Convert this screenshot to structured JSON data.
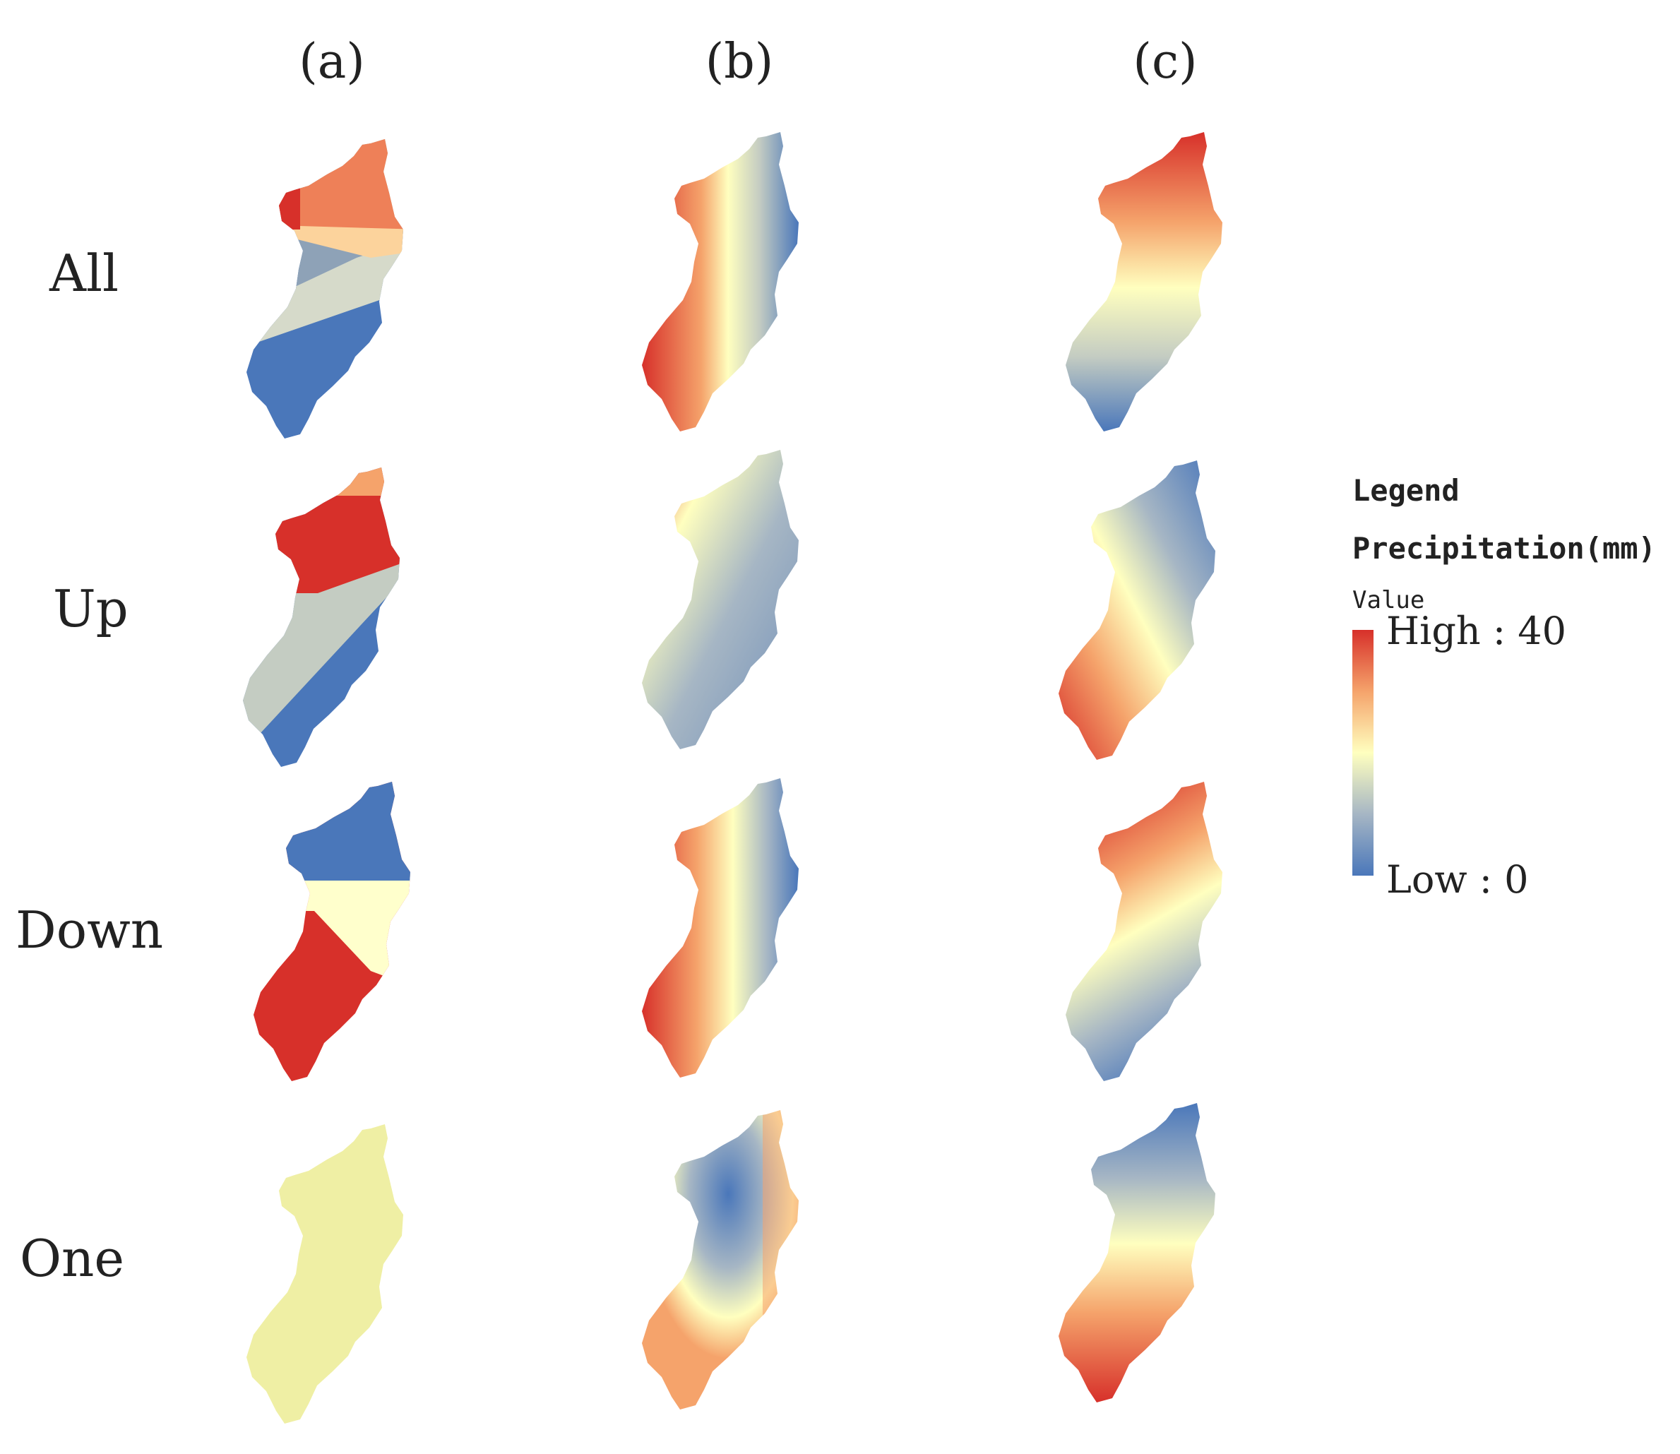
{
  "columns": [
    "(a)",
    "(b)",
    "(c)"
  ],
  "rows": [
    "All",
    "Up",
    "Down",
    "One"
  ],
  "legend": {
    "title": "Legend",
    "variable": "Precipitation(mm)",
    "field": "Value",
    "high_label": "High : 40",
    "low_label": "Low : 0",
    "high": 40,
    "low": 0,
    "colors": {
      "low": "#4A77BA",
      "mid_low": "#C4CCC2",
      "mid": "#FFFFBF",
      "mid_high": "#F5A36B",
      "high": "#D7302A"
    }
  },
  "panels": {
    "a": {
      "All": [
        {
          "zone": "west-tip",
          "value": 40
        },
        {
          "zone": "north",
          "value": 32
        },
        {
          "zone": "upper-middle",
          "value": 24
        },
        {
          "zone": "middle",
          "value": 16
        },
        {
          "zone": "lower",
          "value": 8
        },
        {
          "zone": "south-tip",
          "value": 0
        }
      ],
      "Up": [
        {
          "zone": "north-tip",
          "value": 30
        },
        {
          "zone": "north",
          "value": 40
        },
        {
          "zone": "middle-south",
          "value": 16
        },
        {
          "zone": "south-tip",
          "value": 0
        }
      ],
      "Down": [
        {
          "zone": "north",
          "value": 0
        },
        {
          "zone": "middle",
          "value": 20
        },
        {
          "zone": "south",
          "value": 40
        }
      ],
      "One": [
        {
          "zone": "whole",
          "value": 22
        }
      ]
    },
    "b": {
      "All": "north-west high, east low, south pale",
      "Up": "north-west high, east and south low",
      "Down": "west high, east low, south moderate",
      "One": "north-central low, east high, south moderate"
    },
    "c": {
      "All": "north high, south low",
      "Up": "north-east low, south-west high",
      "Down": "north high, south low",
      "One": "north low, south high"
    }
  }
}
